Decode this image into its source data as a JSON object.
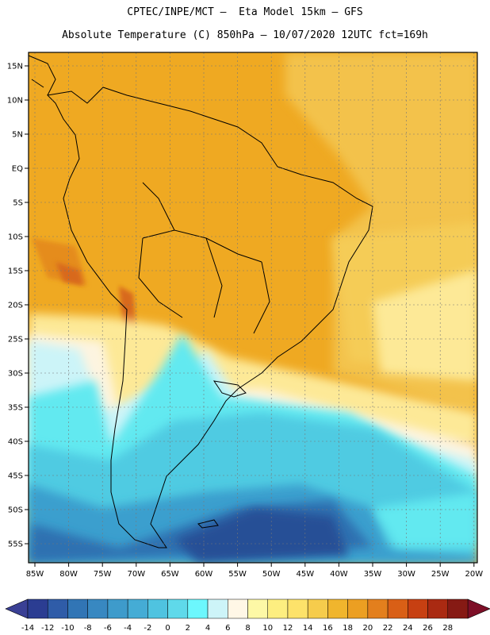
{
  "header": {
    "title_line1": "CPTEC/INPE/MCT –  Eta Model 15km – GFS",
    "title_line2": "Absolute Temperature (C) 850hPa – 10/07/2020 12UTC fct=169h"
  },
  "map": {
    "lat_labels": [
      "15N",
      "10N",
      "5N",
      "EQ",
      "5S",
      "10S",
      "15S",
      "20S",
      "25S",
      "30S",
      "35S",
      "40S",
      "45S",
      "50S",
      "55S"
    ],
    "lon_labels": [
      "85W",
      "80W",
      "75W",
      "70W",
      "65W",
      "60W",
      "55W",
      "50W",
      "45W",
      "40W",
      "35W",
      "30W",
      "25W",
      "20W"
    ],
    "colors": {
      "warm_land": "#efa922",
      "warm_land_dark": "#e58c1d",
      "hot_core": "#d8691a",
      "warm_ocean": "#f3c24b",
      "pale_yellow": "#fde997",
      "cream": "#fdf4e0",
      "pale_cyan": "#ccf4f8",
      "cyan": "#62e9f0",
      "sky": "#4fcbe2",
      "ocean_blue": "#3b9fce",
      "deep_blue": "#2f71b1",
      "navy": "#264f96"
    }
  },
  "colorbar": {
    "labels": [
      "-14",
      "-12",
      "-10",
      "-8",
      "-6",
      "-4",
      "-2",
      "0",
      "2",
      "4",
      "6",
      "8",
      "10",
      "12",
      "14",
      "16",
      "18",
      "20",
      "22",
      "24",
      "26",
      "28"
    ],
    "colors": [
      "#2b3d92",
      "#2f5ca8",
      "#3175b5",
      "#3888c1",
      "#3e9bcb",
      "#45acd5",
      "#4fc3e0",
      "#5fd9ea",
      "#6cf7fd",
      "#cdf4f8",
      "#fff7e6",
      "#fdf8a6",
      "#fdee80",
      "#fde26a",
      "#f6cc4c",
      "#f0b52d",
      "#ec9f22",
      "#e37f1d",
      "#d95f16",
      "#c74012",
      "#aa2a12",
      "#861a14"
    ],
    "under_color": "#3a4095",
    "over_color": "#7d0f27"
  }
}
